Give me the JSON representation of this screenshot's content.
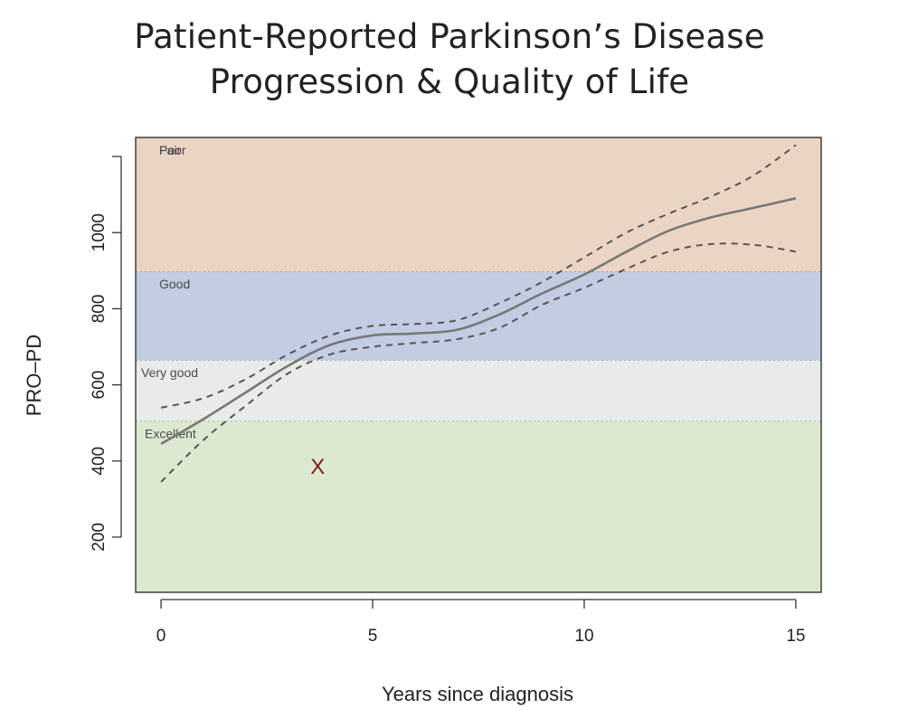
{
  "title_line1": "Patient-Reported Parkinson’s Disease",
  "title_line2": "Progression & Quality of Life",
  "chart_data": {
    "type": "line",
    "xlabel": "Years since diagnosis",
    "ylabel": "PRO–PD",
    "xlim": [
      -0.6,
      15.6
    ],
    "ylim": [
      55,
      1250
    ],
    "x_ticks": [
      0,
      5,
      10,
      15
    ],
    "y_ticks": [
      200,
      400,
      600,
      800,
      1000,
      1200
    ],
    "y_tick_labels": [
      "200",
      "400",
      "600",
      "800",
      "1000",
      ""
    ],
    "grid": false,
    "bands": [
      {
        "label": "Excellent",
        "y0": 55,
        "y1": 505,
        "color": "#dce9d0"
      },
      {
        "label": "Very good",
        "y0": 505,
        "y1": 665,
        "color": "#e8ece8"
      },
      {
        "label": "Good",
        "y0": 665,
        "y1": 898,
        "color": "#c2cce2"
      },
      {
        "label": "Fair",
        "y0": 898,
        "y1": 1268,
        "color": "#ecd4c4"
      },
      {
        "label": "Poor",
        "y0": 1268,
        "y1": 1350,
        "color": "#e2c5bc"
      }
    ],
    "series": [
      {
        "role": "estimate",
        "style": "solid",
        "color": "#777777",
        "x": [
          0,
          1,
          2,
          3,
          4,
          5,
          6,
          7,
          8,
          9,
          10,
          11,
          12,
          13,
          14,
          15
        ],
        "y": [
          445,
          510,
          580,
          650,
          705,
          730,
          735,
          745,
          785,
          840,
          890,
          950,
          1005,
          1040,
          1065,
          1090
        ]
      },
      {
        "role": "upper",
        "style": "dashed",
        "color": "#555555",
        "x": [
          0,
          1,
          2,
          3,
          4,
          5,
          6,
          7,
          8,
          9,
          10,
          11,
          12,
          13,
          14,
          15
        ],
        "y": [
          540,
          565,
          615,
          680,
          730,
          755,
          760,
          770,
          815,
          870,
          935,
          1000,
          1050,
          1095,
          1150,
          1230
        ]
      },
      {
        "role": "lower",
        "style": "dashed",
        "color": "#555555",
        "x": [
          0,
          1,
          2,
          3,
          4,
          5,
          6,
          7,
          8,
          9,
          10,
          11,
          12,
          13,
          14,
          15
        ],
        "y": [
          345,
          455,
          545,
          630,
          680,
          700,
          710,
          720,
          750,
          810,
          855,
          905,
          950,
          970,
          968,
          950
        ]
      }
    ],
    "annotations": [
      {
        "text": "X",
        "x": 3.7,
        "y": 385,
        "color": "#7a1a12"
      }
    ]
  }
}
